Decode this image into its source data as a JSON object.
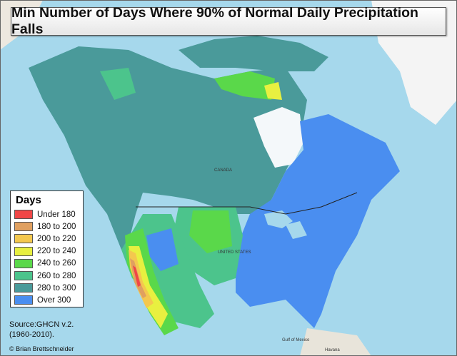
{
  "title": "Min Number of Days Where 90% of Normal Daily Precipitation Falls",
  "legend": {
    "title": "Days",
    "items": [
      {
        "label": "Under 180",
        "color": "#f04646"
      },
      {
        "label": "180 to 200",
        "color": "#e0a060"
      },
      {
        "label": "200 to 220",
        "color": "#f4c84e"
      },
      {
        "label": "220 to 240",
        "color": "#e8f040"
      },
      {
        "label": "240 to 260",
        "color": "#5ad84a"
      },
      {
        "label": "260 to 280",
        "color": "#4cc48c"
      },
      {
        "label": "280 to 300",
        "color": "#4a9a9a"
      },
      {
        "label": "Over 300",
        "color": "#4a8ef0"
      }
    ]
  },
  "source": {
    "line1": "Source:GHCN v.2.",
    "line2": "(1960-2010)."
  },
  "credit": "© Brian Brettschneider",
  "map_labels": {
    "canada": "CANADA",
    "us": "UNITED STATES",
    "havana": "Havana",
    "gulf": "Gulf of Mexico"
  }
}
